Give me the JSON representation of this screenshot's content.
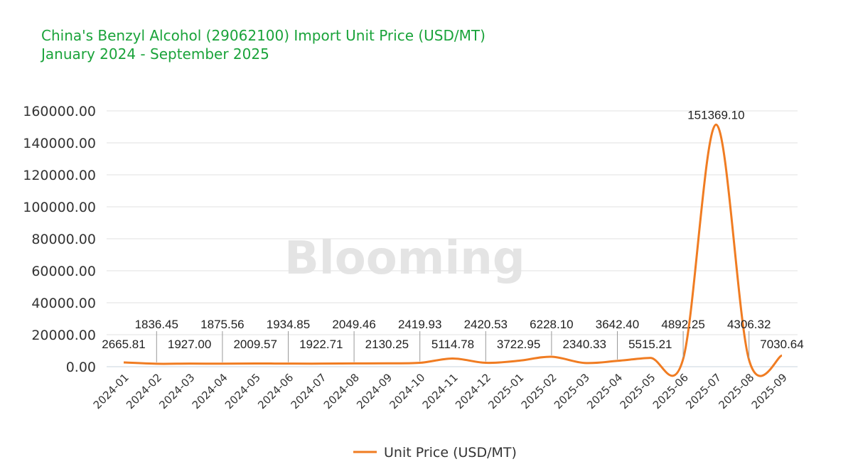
{
  "chart_data": {
    "type": "line",
    "title": "China's Benzyl Alcohol (29062100) Import Unit Price (USD/MT)",
    "subtitle": "January 2024 - September 2025",
    "watermark": "Blooming",
    "categories": [
      "2024-01",
      "2024-02",
      "2024-03",
      "2024-04",
      "2024-05",
      "2024-06",
      "2024-07",
      "2024-08",
      "2024-09",
      "2024-10",
      "2024-11",
      "2024-12",
      "2025-01",
      "2025-02",
      "2025-03",
      "2025-04",
      "2025-05",
      "2025-06",
      "2025-07",
      "2025-08",
      "2025-09"
    ],
    "series": [
      {
        "name": "Unit Price (USD/MT)",
        "color": "#f07c22",
        "values": [
          2665.81,
          1836.45,
          1927.0,
          1875.56,
          2009.57,
          1934.85,
          1922.71,
          2049.46,
          2130.25,
          2419.93,
          5114.78,
          2420.53,
          3722.95,
          6228.1,
          2340.33,
          3642.4,
          5515.21,
          4892.25,
          151369.1,
          4306.32,
          7030.64
        ],
        "labels": [
          "2665.81",
          "1836.45",
          "1927.00",
          "1875.56",
          "2009.57",
          "1934.85",
          "1922.71",
          "2049.46",
          "2130.25",
          "2419.93",
          "5114.78",
          "2420.53",
          "3722.95",
          "6228.10",
          "2340.33",
          "3642.40",
          "5515.21",
          "4892.25",
          "151369.10",
          "4306.32",
          "7030.64"
        ]
      }
    ],
    "yticks": [
      "0.00",
      "20000.00",
      "40000.00",
      "60000.00",
      "80000.00",
      "100000.00",
      "120000.00",
      "140000.00",
      "160000.00"
    ],
    "ylim": [
      0,
      160000
    ],
    "grid": true,
    "smooth": true,
    "legend_placement": "bottom"
  }
}
